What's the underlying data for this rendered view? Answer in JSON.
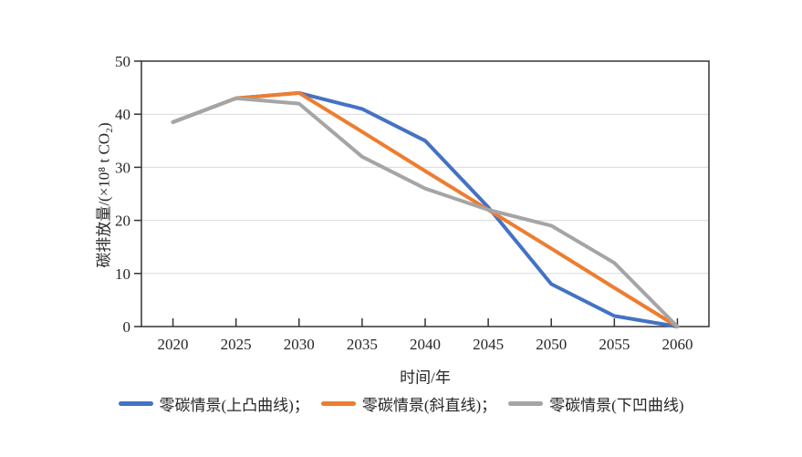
{
  "chart_data": {
    "type": "line",
    "title": "",
    "x": [
      "2020",
      "2025",
      "2030",
      "2035",
      "2040",
      "2045",
      "2050",
      "2055",
      "2060"
    ],
    "xlabel": "时间/年",
    "ylabel": "碳排放量/(×10⁸ t CO₂)",
    "ylim": [
      0,
      50
    ],
    "yticks": [
      0,
      10,
      20,
      30,
      40,
      50
    ],
    "grid": "horizontal",
    "legend_position": "bottom",
    "axis_color": "#333333",
    "gridline_color": "#d9d9d9",
    "series": [
      {
        "name": "零碳情景(上凸曲线)",
        "legend_text": "零碳情景(上凸曲线)；",
        "color": "#4472C4",
        "values": [
          38.5,
          43,
          44,
          41,
          35,
          22.5,
          8,
          2,
          0
        ]
      },
      {
        "name": "零碳情景(斜直线)",
        "legend_text": "零碳情景(斜直线)；",
        "color": "#ED7D31",
        "values": [
          38.5,
          43,
          44,
          36.7,
          29.3,
          22,
          14.7,
          7.3,
          0
        ]
      },
      {
        "name": "零碳情景(下凹曲线)",
        "legend_text": "零碳情景(下凹曲线)",
        "color": "#A5A5A5",
        "values": [
          38.5,
          43,
          42,
          32,
          26,
          22,
          19,
          12,
          0
        ]
      }
    ]
  }
}
